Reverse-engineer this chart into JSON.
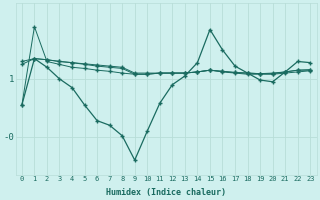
{
  "xlabel": "Humidex (Indice chaleur)",
  "bg_color": "#cff0ee",
  "line_color": "#1a6b60",
  "grid_color": "#b8ddd8",
  "x_values": [
    0,
    1,
    2,
    3,
    4,
    5,
    6,
    7,
    8,
    9,
    10,
    11,
    12,
    13,
    14,
    15,
    16,
    17,
    18,
    19,
    20,
    21,
    22,
    23
  ],
  "series1": [
    0.55,
    1.9,
    1.3,
    1.25,
    1.2,
    1.18,
    1.15,
    1.13,
    1.1,
    1.08,
    1.08,
    1.1,
    1.1,
    1.1,
    1.12,
    1.15,
    1.12,
    1.1,
    1.08,
    1.08,
    1.08,
    1.1,
    1.12,
    1.14
  ],
  "series2": [
    1.25,
    1.35,
    1.33,
    1.3,
    1.28,
    1.25,
    1.22,
    1.2,
    1.18,
    1.08,
    1.08,
    1.1,
    1.1,
    1.1,
    1.12,
    1.15,
    1.13,
    1.11,
    1.1,
    1.09,
    1.09,
    1.12,
    1.15,
    1.15
  ],
  "series3": [
    1.3,
    1.35,
    1.33,
    1.3,
    1.28,
    1.26,
    1.24,
    1.22,
    1.2,
    1.1,
    1.1,
    1.1,
    1.1,
    1.1,
    1.12,
    1.15,
    1.13,
    1.11,
    1.1,
    1.09,
    1.1,
    1.12,
    1.15,
    1.16
  ],
  "series4": [
    0.55,
    1.35,
    1.2,
    1.0,
    0.85,
    0.55,
    0.28,
    0.2,
    0.02,
    -0.4,
    0.1,
    0.58,
    0.9,
    1.05,
    1.28,
    1.85,
    1.5,
    1.22,
    1.1,
    0.98,
    0.95,
    1.12,
    1.3,
    1.28
  ],
  "ylim": [
    -0.65,
    2.3
  ],
  "xlim": [
    -0.5,
    23.5
  ],
  "ytick_vals": [
    -0.0,
    1.0
  ],
  "ytick_labels": [
    "-0",
    "1"
  ]
}
